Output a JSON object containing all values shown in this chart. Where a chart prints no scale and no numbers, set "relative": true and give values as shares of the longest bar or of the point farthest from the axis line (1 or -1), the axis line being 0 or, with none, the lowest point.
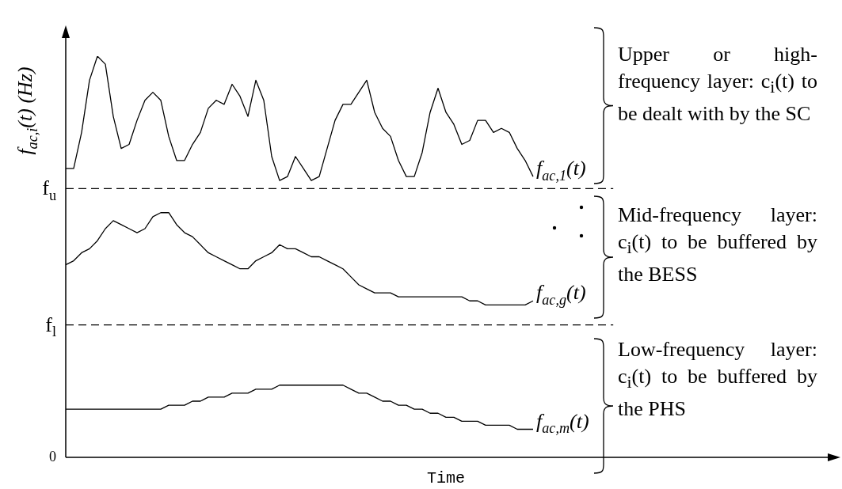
{
  "chart_data": {
    "type": "line",
    "relative": true,
    "legend": false,
    "marker": "none",
    "line_style": "solid",
    "ylabel": "f$_{ac,i}$(t) (Hz)",
    "xlabel": "Time",
    "categories": [
      null,
      null,
      null,
      null,
      null,
      null,
      null,
      null,
      null,
      null,
      null,
      null,
      null,
      null,
      null,
      null,
      null,
      null,
      null,
      null,
      null,
      null,
      null,
      null,
      null,
      null,
      null,
      null,
      null,
      null,
      null,
      null,
      null,
      null,
      null,
      null,
      null,
      null,
      null,
      null,
      null,
      null,
      null,
      null,
      null,
      null,
      null,
      null,
      null,
      null,
      null,
      null,
      null,
      null,
      null,
      null,
      null,
      null,
      null,
      null,
      null,
      null,
      null,
      null,
      null,
      null,
      null,
      null,
      null,
      null,
      null,
      null,
      null,
      null,
      null,
      null,
      null,
      null,
      null,
      null,
      null,
      null,
      null,
      null,
      null,
      null,
      null,
      null,
      null,
      null,
      null,
      null,
      null,
      null,
      null,
      null,
      null
    ],
    "series": [
      {
        "name": "f$_{ac,1}$(t)",
        "color": "#000000",
        "values": [
          0.72,
          0.72,
          0.81,
          0.94,
          1.0,
          0.98,
          0.85,
          0.77,
          0.78,
          0.84,
          0.89,
          0.91,
          0.89,
          0.8,
          0.74,
          0.74,
          0.78,
          0.81,
          0.87,
          0.89,
          0.88,
          0.93,
          0.9,
          0.85,
          0.94,
          0.89,
          0.75,
          0.69,
          0.7,
          0.75,
          0.72,
          0.69,
          0.7,
          0.77,
          0.84,
          0.88,
          0.88,
          0.91,
          0.94,
          0.86,
          0.82,
          0.8,
          0.74,
          0.7,
          0.7,
          0.76,
          0.86,
          0.92,
          0.86,
          0.83,
          0.78,
          0.79,
          0.84,
          0.84,
          0.81,
          0.82,
          0.81,
          0.77,
          0.74,
          0.7,
          null,
          null,
          null,
          null,
          null,
          null,
          null,
          null,
          null,
          null,
          null,
          null,
          null,
          null,
          null,
          null,
          null,
          null,
          null,
          null,
          null,
          null,
          null,
          null,
          null,
          null,
          null,
          null,
          null,
          null,
          null,
          null,
          null,
          null,
          null,
          null,
          null
        ]
      },
      {
        "name": "f$_{ac,g}$(t)",
        "color": "#000000",
        "values": [
          0.48,
          0.49,
          0.51,
          0.52,
          0.54,
          0.57,
          0.59,
          0.58,
          0.57,
          0.56,
          0.57,
          0.6,
          0.61,
          0.61,
          0.58,
          0.56,
          0.55,
          0.53,
          0.51,
          0.5,
          0.49,
          0.48,
          0.47,
          0.47,
          0.49,
          0.5,
          0.51,
          0.53,
          0.52,
          0.52,
          0.51,
          0.5,
          0.5,
          0.49,
          0.48,
          0.47,
          0.45,
          0.43,
          0.42,
          0.41,
          0.41,
          0.41,
          0.4,
          0.4,
          0.4,
          0.4,
          0.4,
          0.4,
          0.4,
          0.4,
          0.4,
          0.39,
          0.39,
          0.38,
          0.38,
          0.38,
          0.38,
          0.38,
          0.38,
          0.39,
          null,
          null,
          null,
          null,
          null,
          null,
          null,
          null,
          null,
          null,
          null,
          null,
          null,
          null,
          null,
          null,
          null,
          null,
          null,
          null,
          null,
          null,
          null,
          null,
          null,
          null,
          null,
          null,
          null,
          null,
          null,
          null,
          null,
          null,
          null,
          null,
          null
        ]
      },
      {
        "name": "f$_{ac,m}$(t)",
        "color": "#000000",
        "values": [
          0.12,
          0.12,
          0.12,
          0.12,
          0.12,
          0.12,
          0.12,
          0.12,
          0.12,
          0.12,
          0.12,
          0.12,
          0.12,
          0.13,
          0.13,
          0.13,
          0.14,
          0.14,
          0.15,
          0.15,
          0.15,
          0.16,
          0.16,
          0.16,
          0.17,
          0.17,
          0.17,
          0.18,
          0.18,
          0.18,
          0.18,
          0.18,
          0.18,
          0.18,
          0.18,
          0.18,
          0.17,
          0.16,
          0.16,
          0.15,
          0.14,
          0.14,
          0.13,
          0.13,
          0.12,
          0.12,
          0.11,
          0.11,
          0.1,
          0.1,
          0.09,
          0.09,
          0.09,
          0.08,
          0.08,
          0.08,
          0.08,
          0.07,
          0.07,
          0.07,
          null,
          null,
          null,
          null,
          null,
          null,
          null,
          null,
          null,
          null,
          null,
          null,
          null,
          null,
          null,
          null,
          null,
          null,
          null,
          null,
          null,
          null,
          null,
          null,
          null,
          null,
          null,
          null,
          null,
          null,
          null,
          null,
          null,
          null,
          null,
          null,
          null
        ]
      }
    ],
    "ref_lines": [
      {
        "axis": "y",
        "value": 0.67,
        "label": "f$_{u}$",
        "line_style": "dashed"
      },
      {
        "axis": "y",
        "value": 0.33,
        "label": "f$_{l}$",
        "line_style": "dashed"
      }
    ],
    "annotations": [
      "0",
      "Upper or high-frequency layer: c$_{i}$(t) to be dealt with by the SC",
      "Mid-frequency layer: c$_{i}$(t) to be buffered by the BESS",
      "Low-frequency layer: c$_{i}$(t) to be buffered by the PHS"
    ]
  }
}
